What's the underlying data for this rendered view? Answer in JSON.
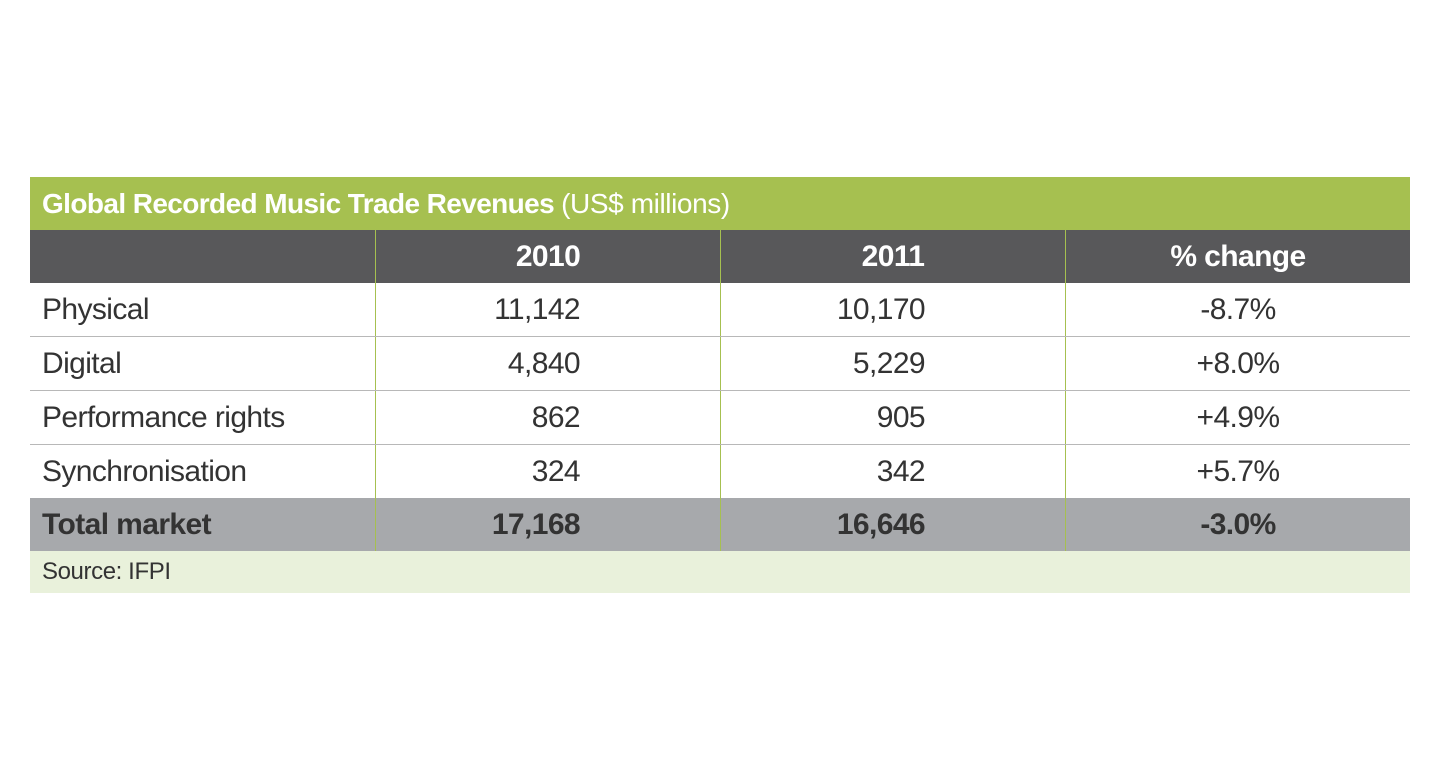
{
  "chart_data": {
    "type": "table",
    "title": "Global Recorded Music Trade Revenues",
    "subtitle": "(US$ millions)",
    "columns": [
      "",
      "2010",
      "2011",
      "% change"
    ],
    "rows": [
      {
        "label": "Physical",
        "values": [
          "11,142",
          "10,170",
          "-8.7%"
        ]
      },
      {
        "label": "Digital",
        "values": [
          "4,840",
          "5,229",
          "+8.0%"
        ]
      },
      {
        "label": "Performance rights",
        "values": [
          "862",
          "905",
          "+4.9%"
        ]
      },
      {
        "label": "Synchronisation",
        "values": [
          "324",
          "342",
          "+5.7%"
        ]
      }
    ],
    "total": {
      "label": "Total market",
      "values": [
        "17,168",
        "16,646",
        "-3.0%"
      ]
    },
    "source": "Source: IFPI"
  },
  "colors": {
    "title_bar": "#a6c050",
    "header_row": "#58585a",
    "total_row": "#a7a9ac",
    "source_row": "#e9f1db"
  }
}
